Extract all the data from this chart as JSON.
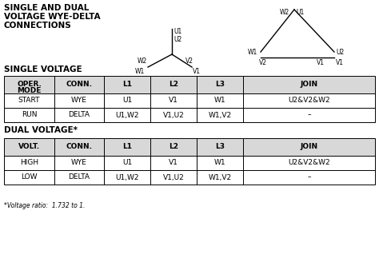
{
  "title_line1": "SINGLE AND DUAL",
  "title_line2": "VOLTAGE WYE-DELTA",
  "title_line3": "CONNECTIONS",
  "single_voltage_label": "SINGLE VOLTAGE",
  "dual_voltage_label": "DUAL VOLTAGE*",
  "footnote": "*Voltage ratio:  1.732 to 1.",
  "single_table_headers": [
    "OPER.\nMODE",
    "CONN.",
    "L1",
    "L2",
    "L3",
    "JOIN"
  ],
  "single_table_rows": [
    [
      "START",
      "WYE",
      "U1",
      "V1",
      "W1",
      "U2&V2&W2"
    ],
    [
      "RUN",
      "DELTA",
      "U1,W2",
      "V1,U2",
      "W1,V2",
      "–"
    ]
  ],
  "dual_table_headers": [
    "VOLT.",
    "CONN.",
    "L1",
    "L2",
    "L3",
    "JOIN"
  ],
  "dual_table_rows": [
    [
      "HIGH",
      "WYE",
      "U1",
      "V1",
      "W1",
      "U2&V2&W2"
    ],
    [
      "LOW",
      "DELTA",
      "U1,W2",
      "V1,U2",
      "W1,V2",
      "–"
    ]
  ],
  "bg_color": "#ffffff",
  "text_color": "#000000",
  "line_color": "#000000",
  "header_bg": "#d8d8d8"
}
